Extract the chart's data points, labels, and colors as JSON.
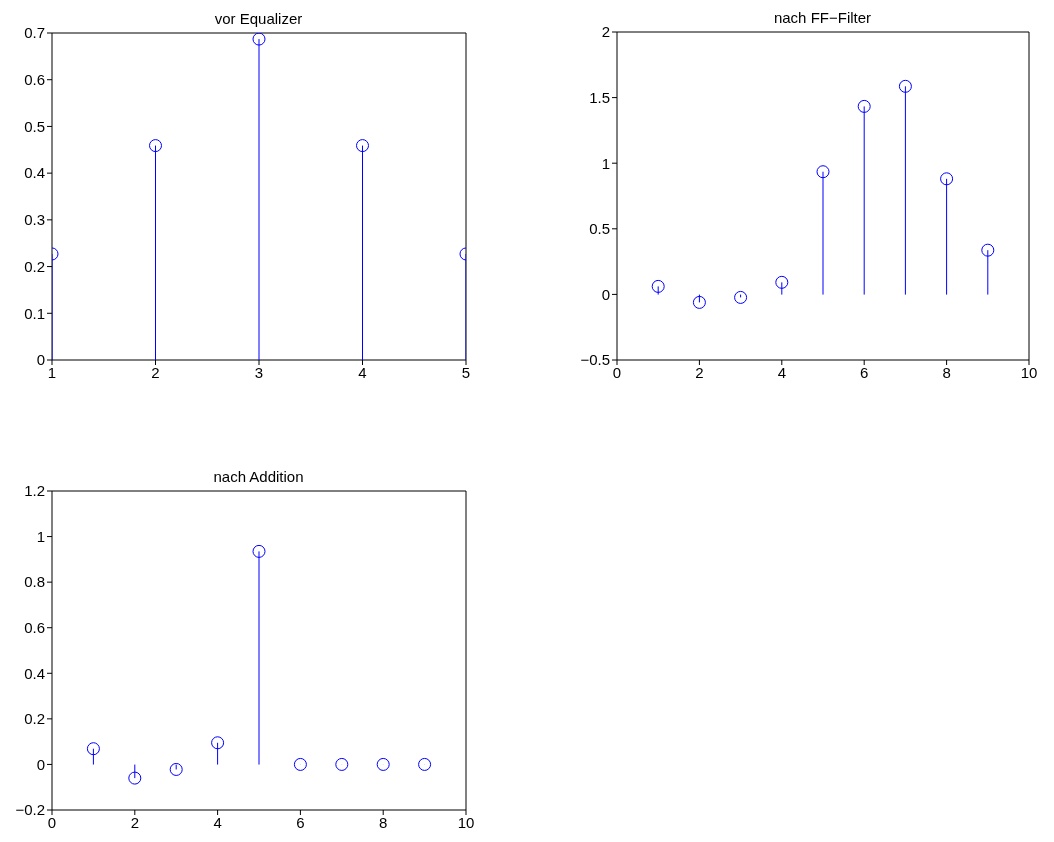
{
  "chart_data": [
    {
      "type": "lollipop",
      "title": "vor Equalizer",
      "x": [
        1,
        2,
        3,
        4,
        5
      ],
      "values": [
        0.227,
        0.459,
        0.687,
        0.459,
        0.227
      ],
      "color": "#0000ff",
      "marker": "circle",
      "xlim": [
        1,
        5
      ],
      "xticks": [
        1,
        2,
        3,
        4,
        5
      ],
      "ylim": [
        0,
        0.7
      ],
      "yticks": [
        0,
        0.1,
        0.2,
        0.3,
        0.4,
        0.5,
        0.6,
        0.7
      ]
    },
    {
      "type": "lollipop",
      "title": "nach FF−Filter",
      "x": [
        1,
        2,
        3,
        4,
        5,
        6,
        7,
        8,
        9
      ],
      "values": [
        0.061,
        -0.061,
        -0.023,
        0.092,
        0.935,
        1.433,
        1.586,
        0.881,
        0.337
      ],
      "color": "#0000ff",
      "marker": "circle",
      "xlim": [
        0,
        10
      ],
      "xticks": [
        0,
        2,
        4,
        6,
        8,
        10
      ],
      "ylim": [
        -0.5,
        2
      ],
      "yticks": [
        {
          "value": -0.5,
          "label": "−0.5"
        },
        0,
        0.5,
        1,
        1.5,
        2
      ]
    },
    {
      "type": "lollipop",
      "title": "nach Addition",
      "x": [
        1,
        2,
        3,
        4,
        5,
        6,
        7,
        8,
        9
      ],
      "values": [
        0.069,
        -0.06,
        -0.022,
        0.095,
        0.935,
        0,
        0,
        0,
        0
      ],
      "color": "#0000ff",
      "marker": "circle",
      "xlim": [
        0,
        10
      ],
      "xticks": [
        0,
        2,
        4,
        6,
        8,
        10
      ],
      "ylim": [
        -0.2,
        1.2
      ],
      "yticks": [
        {
          "value": -0.2,
          "label": "−0.2"
        },
        0,
        0.2,
        0.4,
        0.6,
        0.8,
        1,
        1.2
      ]
    }
  ]
}
